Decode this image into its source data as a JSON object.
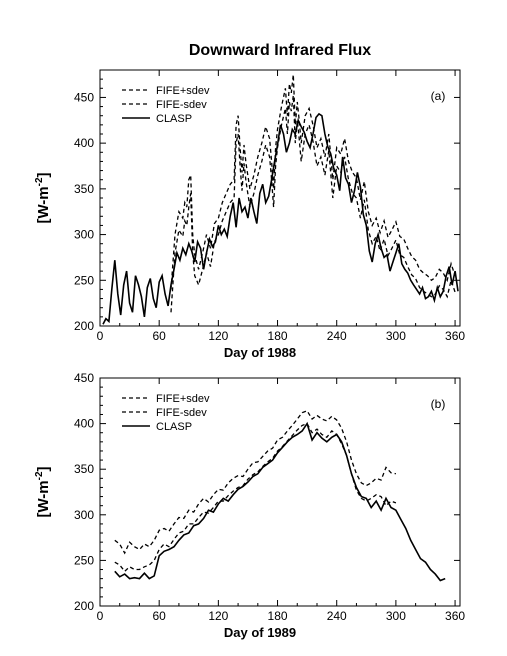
{
  "title": "Downward Infrared Flux",
  "chart_data": [
    {
      "type": "line",
      "panel_label": "(a)",
      "xlabel": "Day of 1988",
      "ylabel": "[W-m-2]",
      "ylabel_main": "[W-m",
      "ylabel_sup": "-2",
      "ylabel_end": "]",
      "xlim": [
        0,
        365
      ],
      "ylim": [
        200,
        480
      ],
      "xticks": [
        0,
        60,
        120,
        180,
        240,
        300,
        360
      ],
      "yticks": [
        200,
        250,
        300,
        350,
        400,
        450
      ],
      "legend_position": "top-left",
      "series": [
        {
          "name": "FIFE+sdev",
          "style": "dashed",
          "x": [
            72,
            76,
            80,
            84,
            86,
            88,
            90,
            92,
            94,
            96,
            100,
            104,
            108,
            112,
            116,
            120,
            124,
            128,
            132,
            136,
            138,
            140,
            142,
            144,
            146,
            148,
            152,
            156,
            160,
            164,
            168,
            172,
            174,
            176,
            178,
            180,
            184,
            188,
            190,
            192,
            194,
            196,
            198,
            200,
            202,
            204,
            208,
            212,
            216,
            220,
            224,
            228,
            232,
            236,
            240,
            244,
            248,
            252,
            256,
            260,
            264,
            268,
            272,
            276,
            280,
            284,
            288,
            292,
            296,
            300,
            304,
            308,
            312,
            316,
            320,
            324,
            328,
            332,
            336,
            340,
            344,
            348,
            352,
            356,
            360
          ],
          "values": [
            240,
            300,
            325,
            318,
            335,
            330,
            360,
            365,
            300,
            278,
            262,
            280,
            300,
            285,
            312,
            318,
            335,
            345,
            355,
            360,
            420,
            430,
            395,
            368,
            398,
            378,
            350,
            365,
            385,
            400,
            418,
            405,
            380,
            350,
            395,
            415,
            440,
            460,
            430,
            465,
            455,
            475,
            420,
            445,
            425,
            400,
            430,
            438,
            420,
            395,
            405,
            385,
            410,
            360,
            395,
            388,
            405,
            380,
            368,
            362,
            338,
            358,
            325,
            310,
            318,
            302,
            315,
            297,
            305,
            314,
            298,
            295,
            285,
            276,
            272,
            262,
            258,
            255,
            250,
            253,
            262,
            258,
            250,
            268,
            255
          ]
        },
        {
          "name": "FIFE-sdev",
          "style": "dashed",
          "x": [
            72,
            76,
            80,
            84,
            86,
            88,
            90,
            92,
            94,
            96,
            100,
            104,
            108,
            112,
            116,
            120,
            124,
            128,
            132,
            136,
            138,
            140,
            142,
            144,
            146,
            148,
            152,
            156,
            160,
            164,
            168,
            172,
            174,
            176,
            178,
            180,
            184,
            188,
            190,
            192,
            194,
            196,
            198,
            200,
            202,
            204,
            208,
            212,
            216,
            220,
            224,
            228,
            232,
            236,
            240,
            244,
            248,
            252,
            256,
            260,
            264,
            268,
            272,
            276,
            280,
            284,
            288,
            292,
            296,
            300,
            304,
            308,
            312,
            316,
            320,
            324,
            328,
            332,
            336,
            340,
            344,
            348,
            352,
            356,
            360
          ],
          "values": [
            215,
            280,
            305,
            298,
            315,
            310,
            330,
            345,
            280,
            255,
            245,
            262,
            280,
            265,
            292,
            300,
            315,
            325,
            335,
            340,
            400,
            410,
            375,
            348,
            378,
            358,
            330,
            345,
            365,
            380,
            398,
            385,
            360,
            330,
            375,
            395,
            420,
            438,
            410,
            445,
            435,
            452,
            400,
            425,
            405,
            380,
            410,
            420,
            402,
            375,
            385,
            365,
            392,
            340,
            375,
            368,
            385,
            360,
            345,
            340,
            318,
            338,
            305,
            290,
            298,
            282,
            295,
            277,
            285,
            294,
            278,
            275,
            265,
            256,
            252,
            242,
            238,
            235,
            232,
            235,
            244,
            240,
            232,
            250,
            237
          ]
        },
        {
          "name": "CLASP",
          "style": "solid",
          "x": [
            3,
            6,
            9,
            12,
            15,
            18,
            21,
            24,
            27,
            30,
            33,
            36,
            39,
            42,
            45,
            48,
            51,
            54,
            57,
            60,
            63,
            66,
            69,
            72,
            75,
            78,
            81,
            84,
            87,
            90,
            93,
            96,
            99,
            102,
            105,
            108,
            111,
            114,
            117,
            120,
            123,
            126,
            129,
            132,
            135,
            138,
            141,
            144,
            147,
            150,
            153,
            156,
            159,
            162,
            165,
            168,
            171,
            174,
            177,
            180,
            183,
            186,
            189,
            192,
            195,
            198,
            201,
            204,
            207,
            210,
            213,
            216,
            219,
            222,
            225,
            228,
            231,
            234,
            237,
            240,
            243,
            246,
            249,
            252,
            255,
            258,
            261,
            264,
            267,
            270,
            273,
            276,
            279,
            282,
            285,
            288,
            291,
            294,
            297,
            300,
            303,
            306,
            309,
            312,
            315,
            318,
            321,
            324,
            327,
            330,
            333,
            336,
            339,
            342,
            345,
            348,
            351,
            354,
            357,
            360,
            363
          ],
          "values": [
            202,
            208,
            205,
            240,
            272,
            235,
            212,
            245,
            260,
            225,
            215,
            255,
            245,
            232,
            210,
            242,
            252,
            230,
            220,
            248,
            255,
            235,
            222,
            245,
            262,
            280,
            272,
            285,
            278,
            290,
            282,
            270,
            292,
            285,
            262,
            280,
            295,
            287,
            292,
            310,
            300,
            306,
            298,
            320,
            335,
            308,
            340,
            325,
            330,
            318,
            340,
            325,
            312,
            345,
            355,
            335,
            342,
            360,
            380,
            398,
            420,
            410,
            390,
            400,
            415,
            410,
            425,
            418,
            412,
            402,
            395,
            410,
            428,
            432,
            430,
            410,
            396,
            388,
            372,
            365,
            348,
            385,
            362,
            355,
            335,
            348,
            368,
            352,
            322,
            310,
            282,
            270,
            290,
            300,
            285,
            275,
            278,
            260,
            270,
            280,
            290,
            268,
            262,
            258,
            250,
            245,
            240,
            235,
            242,
            230,
            232,
            238,
            228,
            242,
            232,
            238,
            255,
            265,
            245,
            260,
            238
          ]
        }
      ]
    },
    {
      "type": "line",
      "panel_label": "(b)",
      "xlabel": "Day of 1989",
      "ylabel": "[W-m-2]",
      "ylabel_main": "[W-m",
      "ylabel_sup": "-2",
      "ylabel_end": "]",
      "xlim": [
        0,
        365
      ],
      "ylim": [
        200,
        450
      ],
      "xticks": [
        0,
        60,
        120,
        180,
        240,
        300,
        360
      ],
      "yticks": [
        200,
        250,
        300,
        350,
        400,
        450
      ],
      "legend_position": "top-left",
      "series": [
        {
          "name": "FIFE+sdev",
          "style": "dashed",
          "x": [
            15,
            20,
            25,
            30,
            35,
            40,
            45,
            50,
            55,
            60,
            65,
            70,
            75,
            80,
            85,
            90,
            95,
            100,
            105,
            110,
            115,
            120,
            125,
            130,
            135,
            140,
            145,
            150,
            155,
            160,
            165,
            170,
            175,
            180,
            185,
            190,
            195,
            200,
            205,
            210,
            215,
            220,
            225,
            230,
            235,
            240,
            245,
            250,
            255,
            260,
            265,
            270,
            275,
            280,
            285,
            290,
            295,
            300
          ],
          "values": [
            272,
            268,
            258,
            270,
            265,
            262,
            268,
            265,
            272,
            283,
            285,
            282,
            290,
            297,
            296,
            305,
            303,
            312,
            318,
            314,
            322,
            328,
            327,
            335,
            340,
            343,
            342,
            350,
            357,
            358,
            364,
            370,
            373,
            382,
            385,
            392,
            398,
            405,
            412,
            414,
            405,
            409,
            405,
            403,
            408,
            404,
            395,
            380,
            360,
            345,
            335,
            332,
            335,
            340,
            338,
            352,
            346,
            345
          ]
        },
        {
          "name": "FIFE-sdev",
          "style": "dashed",
          "x": [
            15,
            20,
            25,
            30,
            35,
            40,
            45,
            50,
            55,
            60,
            65,
            70,
            75,
            80,
            85,
            90,
            95,
            100,
            105,
            110,
            115,
            120,
            125,
            130,
            135,
            140,
            145,
            150,
            155,
            160,
            165,
            170,
            175,
            180,
            185,
            190,
            195,
            200,
            205,
            210,
            215,
            220,
            225,
            230,
            235,
            240,
            245,
            250,
            255,
            260,
            265,
            270,
            275,
            280,
            285,
            290,
            295,
            300
          ],
          "values": [
            248,
            245,
            238,
            243,
            240,
            240,
            243,
            245,
            250,
            262,
            268,
            265,
            273,
            280,
            282,
            290,
            290,
            297,
            303,
            302,
            308,
            315,
            315,
            321,
            326,
            330,
            332,
            339,
            344,
            347,
            353,
            358,
            362,
            370,
            375,
            381,
            387,
            393,
            398,
            400,
            390,
            394,
            388,
            385,
            392,
            388,
            378,
            365,
            345,
            327,
            318,
            315,
            318,
            322,
            320,
            310,
            315,
            313
          ]
        },
        {
          "name": "CLASP",
          "style": "solid",
          "x": [
            15,
            20,
            25,
            30,
            35,
            40,
            45,
            50,
            55,
            60,
            65,
            70,
            75,
            80,
            85,
            90,
            95,
            100,
            105,
            110,
            115,
            120,
            125,
            130,
            135,
            140,
            145,
            150,
            155,
            160,
            165,
            170,
            175,
            180,
            185,
            190,
            195,
            200,
            205,
            210,
            215,
            220,
            225,
            230,
            235,
            240,
            245,
            250,
            255,
            260,
            265,
            270,
            275,
            280,
            285,
            290,
            295,
            300,
            305,
            310,
            315,
            320,
            325,
            330,
            335,
            340,
            345,
            350
          ],
          "values": [
            238,
            232,
            235,
            230,
            231,
            230,
            236,
            230,
            233,
            255,
            260,
            262,
            265,
            272,
            278,
            280,
            288,
            290,
            296,
            305,
            303,
            312,
            318,
            315,
            322,
            328,
            331,
            336,
            342,
            345,
            352,
            356,
            360,
            368,
            374,
            380,
            385,
            388,
            392,
            400,
            382,
            390,
            384,
            380,
            385,
            388,
            380,
            365,
            345,
            330,
            320,
            318,
            308,
            315,
            305,
            318,
            308,
            305,
            295,
            285,
            272,
            262,
            252,
            248,
            240,
            235,
            228,
            230
          ]
        }
      ]
    }
  ]
}
